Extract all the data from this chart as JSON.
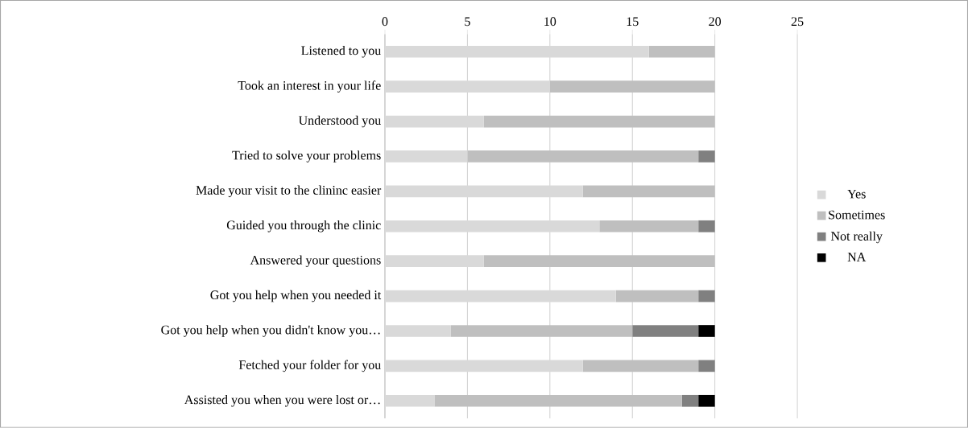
{
  "chart_data": {
    "type": "bar",
    "orientation": "horizontal",
    "stacked": true,
    "categories": [
      "Listened to you",
      "Took an interest in your life",
      "Understood you",
      "Tried to solve your problems",
      "Made your visit to the clininc easier",
      "Guided you through the clinic",
      "Answered your questions",
      "Got you help when you needed it",
      "Got you help when you didn't know you…",
      "Fetched your folder for you",
      "Assisted you when you were lost or…"
    ],
    "series": [
      {
        "name": "Yes",
        "color": "#d9d9d9",
        "values": [
          16,
          10,
          6,
          5,
          12,
          13,
          6,
          14,
          4,
          12,
          3
        ]
      },
      {
        "name": "Sometimes",
        "color": "#bfbfbf",
        "values": [
          4,
          10,
          14,
          14,
          8,
          6,
          14,
          5,
          11,
          7,
          15
        ]
      },
      {
        "name": "Not really",
        "color": "#808080",
        "values": [
          0,
          0,
          0,
          1,
          0,
          1,
          0,
          1,
          4,
          1,
          1
        ]
      },
      {
        "name": "NA",
        "color": "#000000",
        "values": [
          0,
          0,
          0,
          0,
          0,
          0,
          0,
          0,
          1,
          0,
          1
        ]
      }
    ],
    "xlim": [
      0,
      25
    ],
    "xticks": [
      0,
      5,
      10,
      15,
      20,
      25
    ],
    "grid": "x",
    "legend": "right"
  }
}
